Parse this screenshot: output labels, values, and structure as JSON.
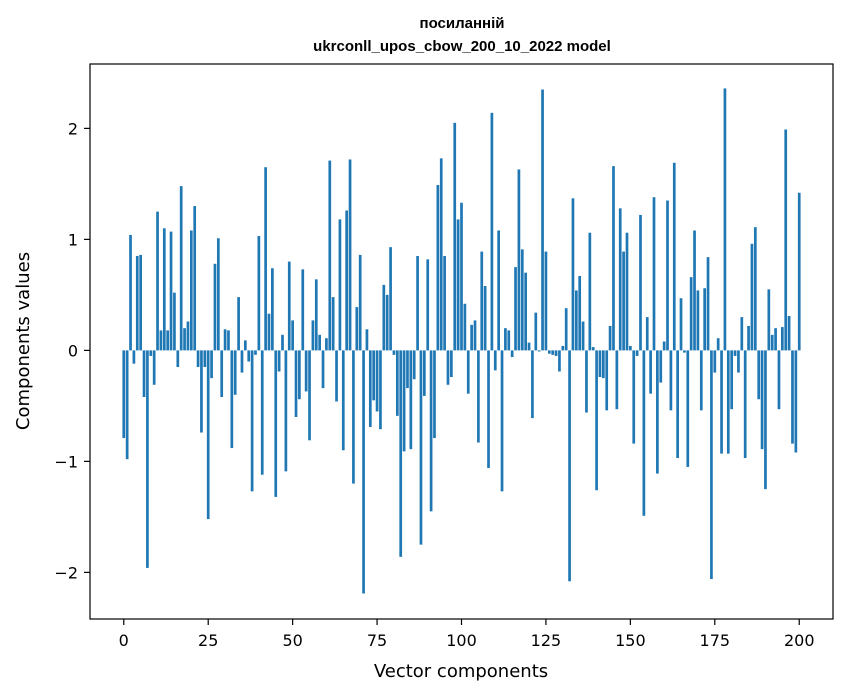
{
  "chart_data": {
    "type": "bar",
    "title_line1": "посиланній",
    "title_line2": "ukrconll_upos_cbow_200_10_2022 model",
    "xlabel": "Vector components",
    "ylabel": "Components values",
    "xlim": [
      -10,
      210
    ],
    "ylim": [
      -2.42,
      2.58
    ],
    "xticks": [
      0,
      25,
      50,
      75,
      100,
      125,
      150,
      175,
      200
    ],
    "yticks": [
      -2,
      -1,
      0,
      1,
      2
    ],
    "ytick_labels": [
      "−2",
      "−1",
      "0",
      "1",
      "2"
    ],
    "bar_color": "#1f77b4",
    "values": [
      -0.79,
      -0.98,
      1.04,
      -0.12,
      0.85,
      0.86,
      -0.42,
      -1.96,
      -0.05,
      -0.31,
      1.25,
      0.18,
      1.1,
      0.18,
      1.07,
      0.52,
      -0.15,
      1.48,
      0.2,
      0.26,
      1.08,
      1.3,
      -0.15,
      -0.74,
      -0.15,
      -1.52,
      -0.25,
      0.78,
      1.01,
      -0.42,
      0.19,
      0.18,
      -0.88,
      -0.4,
      0.48,
      -0.2,
      0.09,
      -0.1,
      -1.27,
      -0.04,
      1.03,
      -1.12,
      1.65,
      0.33,
      0.74,
      -1.32,
      -0.19,
      0.14,
      -1.09,
      0.8,
      0.27,
      -0.6,
      -0.44,
      0.73,
      -0.37,
      -0.81,
      0.27,
      0.64,
      0.14,
      -0.34,
      0.11,
      1.71,
      0.48,
      -0.46,
      1.18,
      -0.9,
      1.26,
      1.72,
      -1.2,
      0.39,
      0.86,
      -2.19,
      0.19,
      -0.69,
      -0.45,
      -0.55,
      -0.71,
      0.59,
      0.5,
      0.93,
      -0.04,
      -0.59,
      -1.86,
      -0.91,
      -0.34,
      -0.89,
      -0.26,
      0.85,
      -1.75,
      -0.41,
      0.82,
      -1.45,
      -0.79,
      1.49,
      1.73,
      0.85,
      -0.31,
      -0.24,
      2.05,
      1.18,
      1.33,
      0.42,
      -0.39,
      0.23,
      0.27,
      -0.83,
      0.89,
      0.58,
      -1.06,
      2.14,
      -0.18,
      1.08,
      -1.27,
      0.2,
      0.18,
      -0.06,
      0.75,
      1.63,
      0.91,
      0.7,
      0.07,
      -0.61,
      0.34,
      -0.01,
      2.35,
      0.89,
      -0.03,
      -0.04,
      -0.05,
      -0.19,
      0.04,
      0.38,
      -2.08,
      1.37,
      0.54,
      0.67,
      0.26,
      -0.56,
      1.06,
      0.03,
      -1.26,
      -0.24,
      -0.25,
      -0.54,
      0.22,
      1.66,
      -0.53,
      1.28,
      0.89,
      1.06,
      0.04,
      -0.84,
      -0.05,
      1.22,
      -1.49,
      0.3,
      -0.39,
      1.38,
      -1.11,
      -0.29,
      0.08,
      1.35,
      -0.54,
      1.69,
      -0.97,
      0.47,
      -0.02,
      -1.05,
      0.66,
      1.08,
      0.54,
      -0.54,
      0.56,
      0.84,
      -2.06,
      -0.2,
      0.11,
      -0.93,
      2.36,
      -0.93,
      -0.53,
      -0.05,
      -0.2,
      0.3,
      -0.97,
      0.22,
      0.96,
      1.11,
      -0.44,
      -0.89,
      -1.25,
      0.55,
      0.14,
      0.2,
      -0.53,
      0.21,
      1.99,
      0.31,
      -0.84,
      -0.92,
      1.42
    ]
  }
}
